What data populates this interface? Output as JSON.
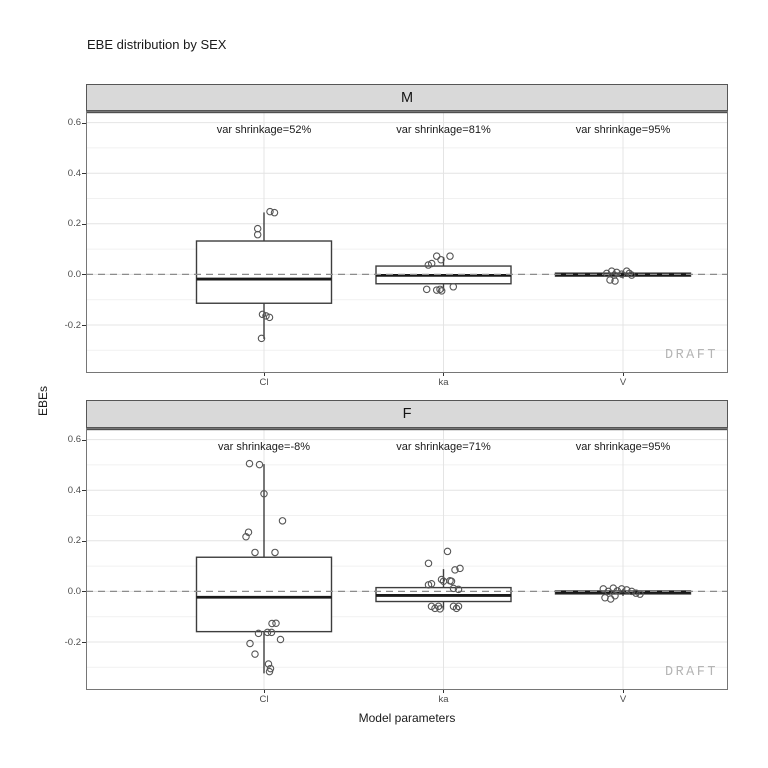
{
  "title": "EBE distribution by SEX",
  "axes": {
    "x_title": "Model parameters",
    "y_title": "EBEs"
  },
  "watermark": "DRAFT",
  "colors": {
    "strip_fill": "#d9d9d9",
    "strip_border": "#565656",
    "panel_border": "#767676",
    "panel_top_line": "#4f4f4f",
    "grid_major": "#e4e4e4",
    "grid_minor": "#f1f1f1",
    "zero_line": "#8c8c8c",
    "box_stroke": "#3d3d3d",
    "median_stroke": "#1a1a1a",
    "point_stroke": "#565656",
    "tick_label": "#4d4d4d",
    "watermark_color": "#b5b5b5"
  },
  "chart_data": {
    "type": "boxplot",
    "title": "EBE distribution by SEX",
    "xlabel": "Model parameters",
    "ylabel": "EBEs",
    "categories": [
      "Cl",
      "ka",
      "V"
    ],
    "y_ticks": [
      0.6,
      0.4,
      0.2,
      0.0,
      -0.2
    ],
    "y_tick_labels": [
      "0.6",
      "0.4",
      "0.2",
      "0.0",
      "-0.2"
    ],
    "y_minor_ticks": [
      0.5,
      0.3,
      0.1,
      -0.1,
      -0.3
    ],
    "ylim": [
      -0.39,
      0.646
    ],
    "grid": true,
    "zero_reference_line": 0,
    "facets": [
      {
        "label": "M",
        "annotations": [
          "var shrinkage=52%",
          "var shrinkage=81%",
          "var shrinkage=95%"
        ],
        "boxes": [
          {
            "category": "Cl",
            "whisker_low": -0.255,
            "q1": -0.114,
            "median": -0.0185,
            "q3": 0.132,
            "whisker_high": 0.245
          },
          {
            "category": "ka",
            "whisker_low": -0.065,
            "q1": -0.037,
            "median": -0.004,
            "q3": 0.033,
            "whisker_high": 0.069
          },
          {
            "category": "V",
            "whisker_low": -0.016,
            "q1": -0.007,
            "median": -0.001,
            "q3": 0.005,
            "whisker_high": 0.013
          }
        ],
        "points": [
          [
            [
              6,
              0.248
            ],
            [
              10.5,
              0.244
            ],
            [
              -6.3,
              0.181
            ],
            [
              -6.3,
              0.157
            ],
            [
              -1.5,
              -0.158
            ],
            [
              2,
              -0.164
            ],
            [
              5.5,
              -0.17
            ],
            [
              -2.5,
              -0.253
            ]
          ],
          [
            [
              -6.8,
              0.072
            ],
            [
              6.5,
              0.072
            ],
            [
              -2.5,
              0.058
            ],
            [
              -15.2,
              0.037
            ],
            [
              -11.8,
              0.043
            ],
            [
              9.8,
              -0.049
            ],
            [
              -16.8,
              -0.059
            ],
            [
              -6.8,
              -0.062
            ],
            [
              -3.5,
              -0.059
            ],
            [
              -1.8,
              -0.065
            ]
          ],
          [
            [
              -16.3,
              0.004
            ],
            [
              -11.3,
              0.013
            ],
            [
              -8.7,
              -0.003
            ],
            [
              -6.3,
              0.008
            ],
            [
              -1.3,
              0.001
            ],
            [
              3.7,
              0.013
            ],
            [
              6.3,
              0.004
            ],
            [
              8.7,
              -0.003
            ],
            [
              -13,
              -0.022
            ],
            [
              -8,
              -0.026
            ]
          ]
        ]
      },
      {
        "label": "F",
        "annotations": [
          "var shrinkage=-8%",
          "var shrinkage=71%",
          "var shrinkage=95%"
        ],
        "boxes": [
          {
            "category": "Cl",
            "whisker_low": -0.324,
            "q1": -0.159,
            "median": -0.023,
            "q3": 0.135,
            "whisker_high": 0.503
          },
          {
            "category": "ka",
            "whisker_low": -0.072,
            "q1": -0.04,
            "median": -0.016,
            "q3": 0.015,
            "whisker_high": 0.088
          },
          {
            "category": "V",
            "whisker_low": -0.018,
            "q1": -0.01,
            "median": -0.004,
            "q3": 0.002,
            "whisker_high": 0.01
          }
        ],
        "points": [
          [
            [
              -14.5,
              0.505
            ],
            [
              -4.5,
              0.501
            ],
            [
              0,
              0.386
            ],
            [
              18.5,
              0.279
            ],
            [
              -15.5,
              0.234
            ],
            [
              -18,
              0.216
            ],
            [
              -9,
              0.154
            ],
            [
              11,
              0.154
            ],
            [
              8,
              -0.127
            ],
            [
              12,
              -0.126
            ],
            [
              3.5,
              -0.162
            ],
            [
              7.5,
              -0.162
            ],
            [
              -5.5,
              -0.166
            ],
            [
              16.5,
              -0.19
            ],
            [
              -14,
              -0.206
            ],
            [
              -9,
              -0.248
            ],
            [
              4.5,
              -0.287
            ],
            [
              6.5,
              -0.305
            ],
            [
              5.5,
              -0.317
            ]
          ],
          [
            [
              4,
              0.158
            ],
            [
              -15,
              0.111
            ],
            [
              16.5,
              0.091
            ],
            [
              11.5,
              0.085
            ],
            [
              -2,
              0.047
            ],
            [
              6.5,
              0.042
            ],
            [
              0,
              0.04
            ],
            [
              8,
              0.04
            ],
            [
              -12,
              0.03
            ],
            [
              -15,
              0.026
            ],
            [
              10,
              0.012
            ],
            [
              15,
              0.008
            ],
            [
              -12,
              -0.059
            ],
            [
              -5,
              -0.059
            ],
            [
              10,
              -0.059
            ],
            [
              15,
              -0.059
            ],
            [
              -8.5,
              -0.067
            ],
            [
              13,
              -0.067
            ],
            [
              -3.5,
              -0.069
            ]
          ],
          [
            [
              -19.7,
              0.01
            ],
            [
              -14.7,
              0.0
            ],
            [
              -9.7,
              0.013
            ],
            [
              -5.7,
              0.002
            ],
            [
              -1.3,
              0.01
            ],
            [
              3.7,
              0.006
            ],
            [
              8.7,
              0.0
            ],
            [
              13,
              -0.007
            ],
            [
              17,
              -0.011
            ],
            [
              -18,
              -0.025
            ],
            [
              -12.3,
              -0.03
            ],
            [
              -8,
              -0.017
            ]
          ]
        ]
      }
    ]
  }
}
